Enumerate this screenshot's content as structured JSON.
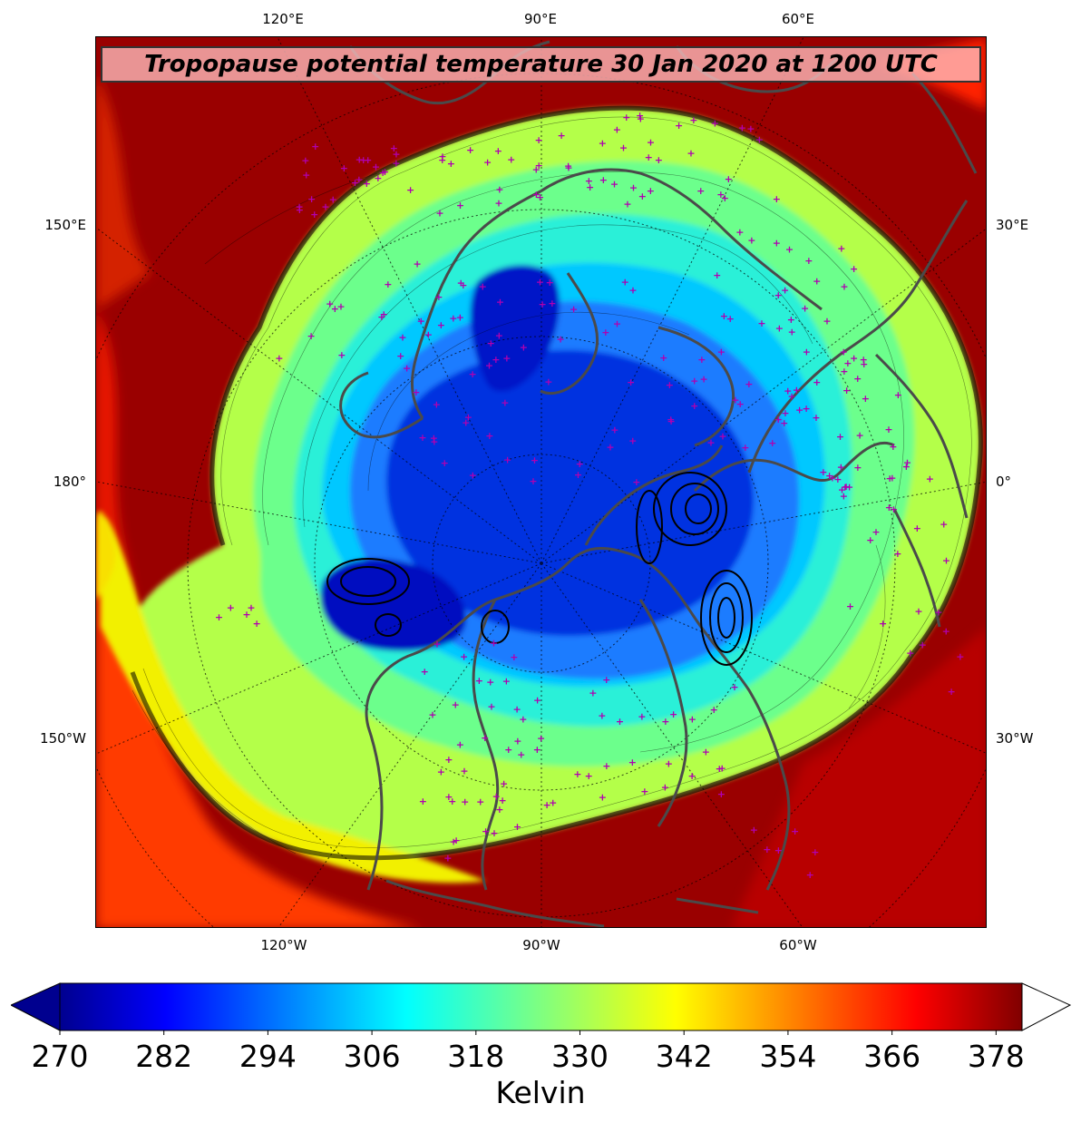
{
  "title": "Tropopause potential temperature 30 Jan 2020 at 1200 UTC",
  "longitude_ticks": {
    "top": [
      "120°E",
      "90°E",
      "60°E"
    ],
    "bottom": [
      "120°W",
      "90°W",
      "60°W"
    ],
    "left": [
      "150°E",
      "180°",
      "150°W"
    ],
    "right": [
      "30°E",
      "0°",
      "30°W"
    ]
  },
  "colorbar": {
    "units": "Kelvin",
    "min": 270,
    "max": 381,
    "tick_labels": [
      "270",
      "282",
      "294",
      "306",
      "318",
      "330",
      "342",
      "354",
      "366",
      "378"
    ],
    "colormap": "jet",
    "extend": "both"
  },
  "field": {
    "name": "tropopause potential temperature",
    "date": "30 Jan 2020",
    "time": "1200 UTC",
    "projection": "north polar stereographic",
    "overlays": [
      "isentropic contours",
      "black pressure contours",
      "coastlines",
      "country borders",
      "magenta station markers"
    ]
  },
  "colors": {
    "cold_core": "#0010c8",
    "mid": "#7cff7c",
    "warm": "#ff2800",
    "hot": "#8b0000",
    "station_marker": "#b000b0",
    "coastline": "#444444"
  }
}
